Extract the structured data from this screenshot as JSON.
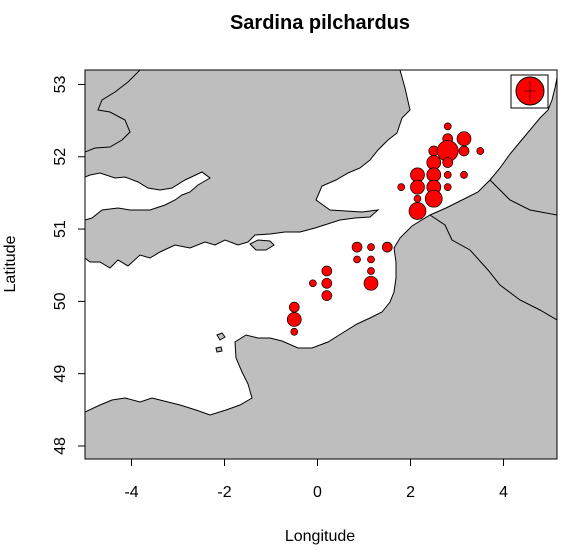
{
  "chart_data": {
    "type": "scatter",
    "title": "Sardina pilchardus",
    "xlabel": "Longitude",
    "ylabel": "Latitude",
    "xlim": [
      -5.0,
      5.15
    ],
    "ylim": [
      47.82,
      53.2
    ],
    "x_ticks": [
      -4,
      -2,
      0,
      2,
      4
    ],
    "y_ticks": [
      48,
      49,
      50,
      51,
      52,
      53
    ],
    "grid": false,
    "legend": "none",
    "colors": {
      "land": "#bebebe",
      "sea": "#ffffff",
      "point_fill": "#ff0000",
      "point_stroke": "#000000"
    },
    "series": [
      {
        "points": [
          {
            "lon": -0.5,
            "lat": 49.92,
            "size": 2
          },
          {
            "lon": -0.5,
            "lat": 49.75,
            "size": 3
          },
          {
            "lon": -0.5,
            "lat": 49.58,
            "size": 1
          },
          {
            "lon": -0.1,
            "lat": 50.25,
            "size": 1
          },
          {
            "lon": 0.2,
            "lat": 50.42,
            "size": 2
          },
          {
            "lon": 0.2,
            "lat": 50.25,
            "size": 2
          },
          {
            "lon": 0.2,
            "lat": 50.08,
            "size": 2
          },
          {
            "lon": 0.85,
            "lat": 50.75,
            "size": 2
          },
          {
            "lon": 0.85,
            "lat": 50.58,
            "size": 1
          },
          {
            "lon": 1.15,
            "lat": 50.75,
            "size": 1
          },
          {
            "lon": 1.15,
            "lat": 50.58,
            "size": 1
          },
          {
            "lon": 1.15,
            "lat": 50.42,
            "size": 1
          },
          {
            "lon": 1.15,
            "lat": 50.25,
            "size": 3
          },
          {
            "lon": 1.5,
            "lat": 50.75,
            "size": 2
          },
          {
            "lon": 1.8,
            "lat": 51.58,
            "size": 1
          },
          {
            "lon": 2.15,
            "lat": 51.75,
            "size": 3
          },
          {
            "lon": 2.15,
            "lat": 51.58,
            "size": 3
          },
          {
            "lon": 2.15,
            "lat": 51.42,
            "size": 1
          },
          {
            "lon": 2.15,
            "lat": 51.25,
            "size": 4
          },
          {
            "lon": 2.5,
            "lat": 52.08,
            "size": 2
          },
          {
            "lon": 2.5,
            "lat": 51.92,
            "size": 3
          },
          {
            "lon": 2.5,
            "lat": 51.75,
            "size": 3
          },
          {
            "lon": 2.5,
            "lat": 51.58,
            "size": 3
          },
          {
            "lon": 2.5,
            "lat": 51.42,
            "size": 4
          },
          {
            "lon": 2.8,
            "lat": 52.42,
            "size": 1
          },
          {
            "lon": 2.8,
            "lat": 52.25,
            "size": 2
          },
          {
            "lon": 2.8,
            "lat": 52.08,
            "size": 5
          },
          {
            "lon": 2.8,
            "lat": 51.92,
            "size": 2
          },
          {
            "lon": 2.8,
            "lat": 51.75,
            "size": 1
          },
          {
            "lon": 2.8,
            "lat": 51.58,
            "size": 1
          },
          {
            "lon": 3.15,
            "lat": 52.25,
            "size": 3
          },
          {
            "lon": 3.15,
            "lat": 52.08,
            "size": 2
          },
          {
            "lon": 3.15,
            "lat": 51.75,
            "size": 1
          },
          {
            "lon": 3.5,
            "lat": 52.08,
            "size": 1
          }
        ]
      }
    ]
  }
}
